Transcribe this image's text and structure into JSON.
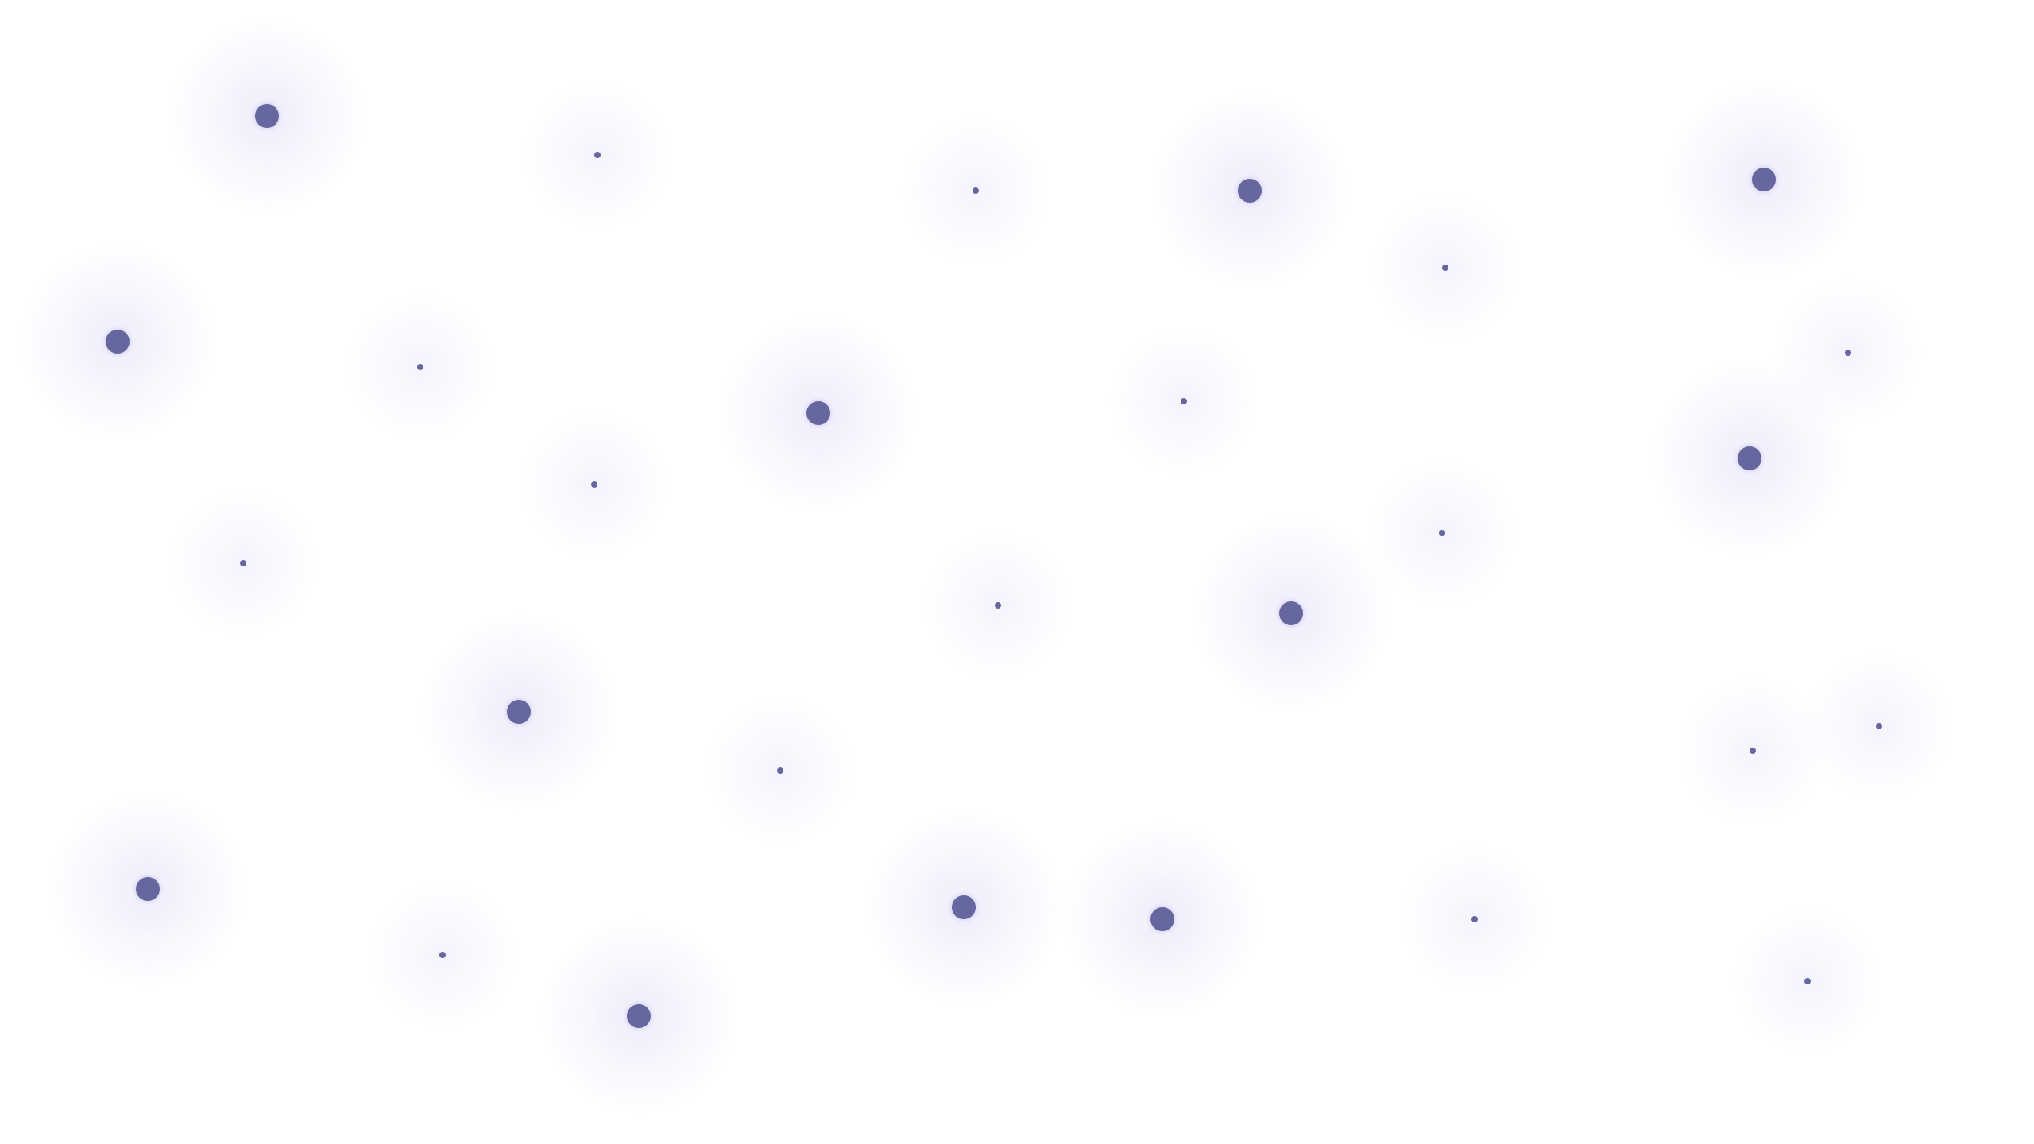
{
  "colors": {
    "background": "#ffffff",
    "dot": "#67679f",
    "glow": "#7a6fd6"
  },
  "dots": [
    {
      "size": "large"
    },
    {
      "size": "small"
    },
    {
      "size": "small"
    },
    {
      "size": "large"
    },
    {
      "size": "large"
    },
    {
      "size": "large"
    },
    {
      "size": "small"
    },
    {
      "size": "small"
    },
    {
      "size": "large"
    },
    {
      "size": "small"
    },
    {
      "size": "small"
    },
    {
      "size": "small"
    },
    {
      "size": "large"
    },
    {
      "size": "small"
    },
    {
      "size": "small"
    },
    {
      "size": "small"
    },
    {
      "size": "large"
    },
    {
      "size": "large"
    },
    {
      "size": "small"
    },
    {
      "size": "small"
    },
    {
      "size": "small"
    },
    {
      "size": "large"
    },
    {
      "size": "small"
    },
    {
      "size": "large"
    },
    {
      "size": "large"
    },
    {
      "size": "small"
    },
    {
      "size": "large"
    },
    {
      "size": "small"
    }
  ]
}
